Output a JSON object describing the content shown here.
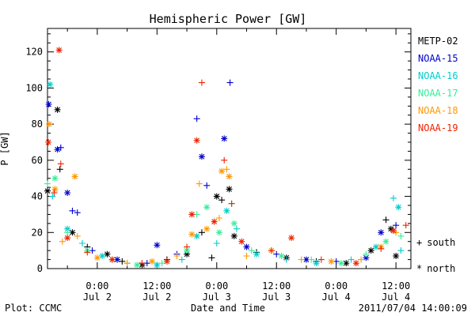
{
  "chart_data": {
    "type": "scatter",
    "title": "Hemispheric Power [GW]",
    "xlabel": "Date and Time",
    "ylabel": "P [GW]",
    "ylim": [
      0,
      133
    ],
    "y_ticks": [
      0,
      20,
      40,
      60,
      80,
      100,
      120
    ],
    "xlim": [
      "2011-07-01T14:00",
      "2011-07-04T15:00"
    ],
    "x_ticks": [
      {
        "time": "2011-07-02T00:00",
        "line1": "0:00",
        "line2": "Jul 2"
      },
      {
        "time": "2011-07-02T12:00",
        "line1": "12:00",
        "line2": "Jul 2"
      },
      {
        "time": "2011-07-03T00:00",
        "line1": "0:00",
        "line2": "Jul 3"
      },
      {
        "time": "2011-07-03T12:00",
        "line1": "12:00",
        "line2": "Jul 3"
      },
      {
        "time": "2011-07-04T00:00",
        "line1": "0:00",
        "line2": "Jul 4"
      },
      {
        "time": "2011-07-04T12:00",
        "line1": "12:00",
        "line2": "Jul 4"
      }
    ],
    "grid": false,
    "legend_placement": "right",
    "legend_markers": [
      {
        "symbol": "+",
        "label": "south"
      },
      {
        "symbol": "*",
        "label": "north"
      }
    ],
    "series": [
      {
        "name": "METP-02",
        "color": "#000000",
        "points": [
          [
            "2011-07-01T14:00",
            43,
            "*"
          ],
          [
            "2011-07-01T16:00",
            88,
            "*"
          ],
          [
            "2011-07-01T16:30",
            55,
            "+"
          ],
          [
            "2011-07-01T19:00",
            20,
            "*"
          ],
          [
            "2011-07-01T22:00",
            12,
            "+"
          ],
          [
            "2011-07-02T02:00",
            8,
            "*"
          ],
          [
            "2011-07-02T05:00",
            4,
            "+"
          ],
          [
            "2011-07-02T09:00",
            2,
            "*"
          ],
          [
            "2011-07-02T14:00",
            5,
            "+"
          ],
          [
            "2011-07-02T18:00",
            8,
            "*"
          ],
          [
            "2011-07-02T21:00",
            20,
            "+"
          ],
          [
            "2011-07-02T23:00",
            6,
            "+"
          ],
          [
            "2011-07-03T00:00",
            40,
            "*"
          ],
          [
            "2011-07-03T01:00",
            38,
            "+"
          ],
          [
            "2011-07-03T02:30",
            44,
            "*"
          ],
          [
            "2011-07-03T03:30",
            18,
            "*"
          ],
          [
            "2011-07-03T08:00",
            9,
            "+"
          ],
          [
            "2011-07-03T14:00",
            6,
            "*"
          ],
          [
            "2011-07-03T20:00",
            4,
            "+"
          ],
          [
            "2011-07-04T02:00",
            3,
            "*"
          ],
          [
            "2011-07-04T07:00",
            10,
            "*"
          ],
          [
            "2011-07-04T10:00",
            27,
            "+"
          ],
          [
            "2011-07-04T11:00",
            22,
            "*"
          ],
          [
            "2011-07-04T12:00",
            7,
            "*"
          ]
        ]
      },
      {
        "name": "NOAA-15",
        "color": "#0000cc",
        "points": [
          [
            "2011-07-01T14:15",
            91,
            "*"
          ],
          [
            "2011-07-01T16:00",
            66,
            "*"
          ],
          [
            "2011-07-01T16:40",
            67,
            "+"
          ],
          [
            "2011-07-01T18:00",
            42,
            "*"
          ],
          [
            "2011-07-01T19:00",
            32,
            "+"
          ],
          [
            "2011-07-01T20:00",
            31,
            "+"
          ],
          [
            "2011-07-01T23:00",
            10,
            "+"
          ],
          [
            "2011-07-02T04:00",
            5,
            "*"
          ],
          [
            "2011-07-02T10:00",
            3,
            "+"
          ],
          [
            "2011-07-02T12:00",
            13,
            "*"
          ],
          [
            "2011-07-02T16:00",
            8,
            "+"
          ],
          [
            "2011-07-02T20:00",
            83,
            "+"
          ],
          [
            "2011-07-02T21:00",
            62,
            "*"
          ],
          [
            "2011-07-02T22:00",
            46,
            "+"
          ],
          [
            "2011-07-03T01:30",
            72,
            "*"
          ],
          [
            "2011-07-03T02:40",
            103,
            "+"
          ],
          [
            "2011-07-03T06:00",
            12,
            "*"
          ],
          [
            "2011-07-03T12:00",
            8,
            "+"
          ],
          [
            "2011-07-03T18:00",
            5,
            "*"
          ],
          [
            "2011-07-04T00:00",
            4,
            "+"
          ],
          [
            "2011-07-04T06:00",
            6,
            "*"
          ],
          [
            "2011-07-04T09:00",
            20,
            "*"
          ],
          [
            "2011-07-04T12:00",
            24,
            "+"
          ]
        ]
      },
      {
        "name": "NOAA-16",
        "color": "#00cccc",
        "points": [
          [
            "2011-07-01T14:30",
            102,
            "*"
          ],
          [
            "2011-07-01T15:00",
            40,
            "+"
          ],
          [
            "2011-07-01T18:00",
            22,
            "*"
          ],
          [
            "2011-07-01T21:00",
            14,
            "+"
          ],
          [
            "2011-07-02T01:00",
            7,
            "*"
          ],
          [
            "2011-07-02T06:00",
            3,
            "+"
          ],
          [
            "2011-07-02T12:00",
            2,
            "*"
          ],
          [
            "2011-07-02T17:00",
            5,
            "+"
          ],
          [
            "2011-07-02T20:00",
            18,
            "*"
          ],
          [
            "2011-07-03T00:00",
            14,
            "+"
          ],
          [
            "2011-07-03T02:00",
            32,
            "*"
          ],
          [
            "2011-07-03T04:00",
            22,
            "+"
          ],
          [
            "2011-07-03T08:00",
            8,
            "*"
          ],
          [
            "2011-07-03T14:00",
            5,
            "+"
          ],
          [
            "2011-07-03T20:00",
            3,
            "*"
          ],
          [
            "2011-07-04T03:00",
            5,
            "+"
          ],
          [
            "2011-07-04T08:00",
            12,
            "*"
          ],
          [
            "2011-07-04T11:30",
            39,
            "+"
          ],
          [
            "2011-07-04T12:30",
            34,
            "*"
          ],
          [
            "2011-07-04T13:00",
            10,
            "+"
          ]
        ]
      },
      {
        "name": "NOAA-17",
        "color": "#33ee99",
        "points": [
          [
            "2011-07-01T14:00",
            47,
            "+"
          ],
          [
            "2011-07-01T15:30",
            50,
            "*"
          ],
          [
            "2011-07-01T18:00",
            20,
            "+"
          ],
          [
            "2011-07-01T22:00",
            10,
            "*"
          ],
          [
            "2011-07-02T03:00",
            5,
            "+"
          ],
          [
            "2011-07-02T08:00",
            2,
            "*"
          ],
          [
            "2011-07-02T13:00",
            3,
            "+"
          ],
          [
            "2011-07-02T18:00",
            10,
            "*"
          ],
          [
            "2011-07-02T20:00",
            30,
            "+"
          ],
          [
            "2011-07-02T22:00",
            34,
            "*"
          ],
          [
            "2011-07-03T00:30",
            20,
            "*"
          ],
          [
            "2011-07-03T03:00",
            36,
            "+"
          ],
          [
            "2011-07-03T03:30",
            25,
            "*"
          ],
          [
            "2011-07-03T07:00",
            10,
            "+"
          ],
          [
            "2011-07-03T13:00",
            7,
            "*"
          ],
          [
            "2011-07-03T19:00",
            5,
            "+"
          ],
          [
            "2011-07-04T01:00",
            3,
            "*"
          ],
          [
            "2011-07-04T06:00",
            8,
            "+"
          ],
          [
            "2011-07-04T10:00",
            15,
            "*"
          ],
          [
            "2011-07-04T13:00",
            18,
            "+"
          ]
        ]
      },
      {
        "name": "NOAA-18",
        "color": "#ff9900",
        "points": [
          [
            "2011-07-01T14:20",
            80,
            "*"
          ],
          [
            "2011-07-01T15:30",
            44,
            "*"
          ],
          [
            "2011-07-01T19:30",
            51,
            "*"
          ],
          [
            "2011-07-01T17:00",
            15,
            "+"
          ],
          [
            "2011-07-01T20:00",
            18,
            "+"
          ],
          [
            "2011-07-02T00:00",
            6,
            "*"
          ],
          [
            "2011-07-02T06:00",
            3,
            "+"
          ],
          [
            "2011-07-02T11:00",
            4,
            "*"
          ],
          [
            "2011-07-02T16:00",
            7,
            "+"
          ],
          [
            "2011-07-02T19:00",
            19,
            "*"
          ],
          [
            "2011-07-02T20:30",
            47,
            "+"
          ],
          [
            "2011-07-02T22:00",
            22,
            "*"
          ],
          [
            "2011-07-03T00:30",
            28,
            "+"
          ],
          [
            "2011-07-03T01:00",
            54,
            "*"
          ],
          [
            "2011-07-03T02:00",
            55,
            "+"
          ],
          [
            "2011-07-03T02:30",
            51,
            "*"
          ],
          [
            "2011-07-03T06:00",
            7,
            "+"
          ],
          [
            "2011-07-03T11:00",
            10,
            "*"
          ],
          [
            "2011-07-03T17:00",
            5,
            "+"
          ],
          [
            "2011-07-03T23:00",
            4,
            "*"
          ],
          [
            "2011-07-04T05:00",
            5,
            "+"
          ],
          [
            "2011-07-04T09:00",
            12,
            "*"
          ],
          [
            "2011-07-04T12:00",
            20,
            "+"
          ]
        ]
      },
      {
        "name": "NOAA-19",
        "color": "#ee2200",
        "points": [
          [
            "2011-07-01T14:10",
            70,
            "*"
          ],
          [
            "2011-07-01T16:20",
            121,
            "*"
          ],
          [
            "2011-07-01T16:40",
            58,
            "+"
          ],
          [
            "2011-07-01T15:20",
            42,
            "+"
          ],
          [
            "2011-07-01T18:00",
            17,
            "*"
          ],
          [
            "2011-07-01T22:00",
            9,
            "+"
          ],
          [
            "2011-07-02T03:00",
            5,
            "*"
          ],
          [
            "2011-07-02T09:00",
            3,
            "+"
          ],
          [
            "2011-07-02T14:00",
            4,
            "*"
          ],
          [
            "2011-07-02T18:00",
            12,
            "+"
          ],
          [
            "2011-07-02T19:00",
            30,
            "*"
          ],
          [
            "2011-07-02T20:00",
            71,
            "*"
          ],
          [
            "2011-07-02T21:00",
            103,
            "+"
          ],
          [
            "2011-07-02T23:30",
            26,
            "*"
          ],
          [
            "2011-07-03T01:30",
            60,
            "+"
          ],
          [
            "2011-07-03T03:00",
            36,
            "+"
          ],
          [
            "2011-07-03T05:00",
            15,
            "*"
          ],
          [
            "2011-07-03T11:00",
            10,
            "+"
          ],
          [
            "2011-07-03T15:00",
            17,
            "*"
          ],
          [
            "2011-07-03T21:00",
            5,
            "+"
          ],
          [
            "2011-07-04T04:00",
            3,
            "*"
          ],
          [
            "2011-07-04T09:00",
            11,
            "+"
          ],
          [
            "2011-07-04T11:30",
            21,
            "*"
          ],
          [
            "2011-07-04T14:00",
            24,
            "+"
          ]
        ]
      }
    ]
  },
  "footer": {
    "left": "Plot: CCMC",
    "right": "2011/07/04 14:00:09"
  }
}
